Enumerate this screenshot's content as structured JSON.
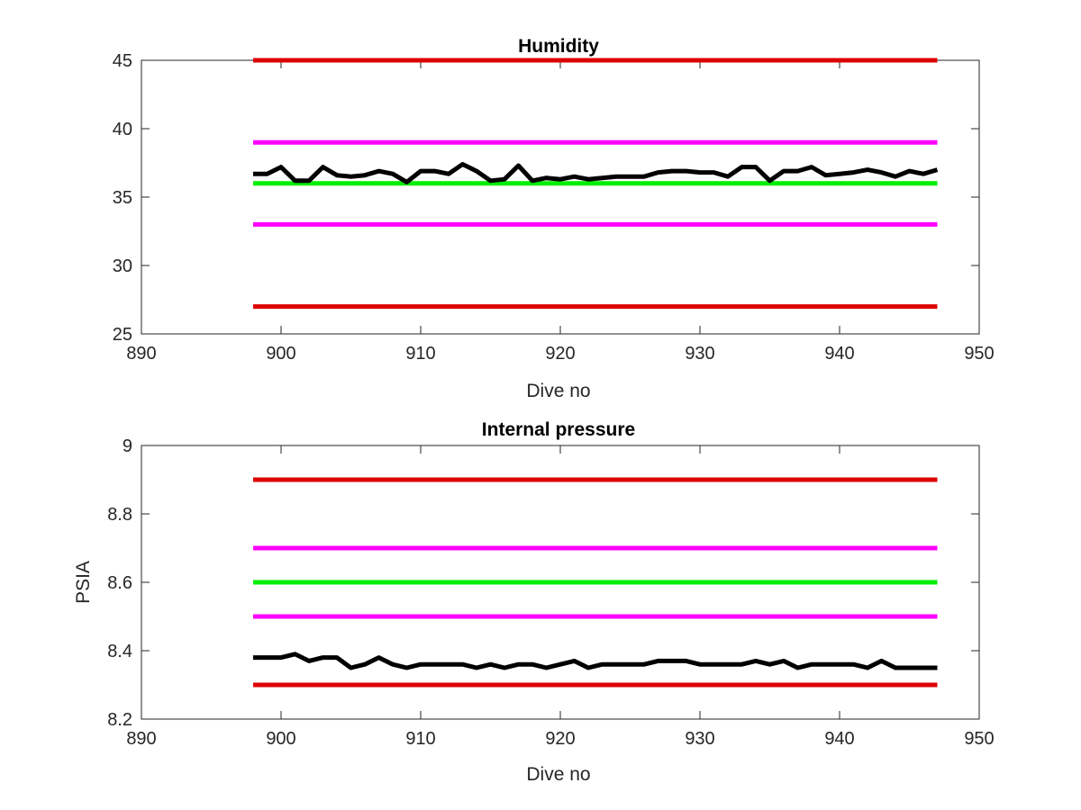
{
  "chart_data": [
    {
      "type": "line",
      "title": "Humidity",
      "xlabel": "Dive no",
      "ylabel": "",
      "xlim": [
        890,
        950
      ],
      "ylim": [
        25,
        45
      ],
      "xticks": [
        "890",
        "900",
        "910",
        "920",
        "930",
        "940",
        "950"
      ],
      "yticks": [
        "25",
        "30",
        "35",
        "40",
        "45"
      ],
      "grid": false,
      "series": [
        {
          "color": "#dd0000",
          "x": [
            898,
            947
          ],
          "y": [
            45,
            45
          ]
        },
        {
          "color": "#ff00ff",
          "x": [
            898,
            947
          ],
          "y": [
            39,
            39
          ]
        },
        {
          "color": "#00ee00",
          "x": [
            898,
            947
          ],
          "y": [
            36,
            36
          ]
        },
        {
          "color": "#ff00ff",
          "x": [
            898,
            947
          ],
          "y": [
            33,
            33
          ]
        },
        {
          "color": "#dd0000",
          "x": [
            898,
            947
          ],
          "y": [
            27,
            27
          ]
        },
        {
          "color": "#000000",
          "x": [
            898,
            899,
            900,
            901,
            902,
            903,
            904,
            905,
            906,
            907,
            908,
            909,
            910,
            911,
            912,
            913,
            914,
            915,
            916,
            917,
            918,
            919,
            920,
            921,
            922,
            923,
            924,
            925,
            926,
            927,
            928,
            929,
            930,
            931,
            932,
            933,
            934,
            935,
            936,
            937,
            938,
            939,
            940,
            941,
            942,
            943,
            944,
            945,
            946,
            947
          ],
          "y": [
            36.7,
            36.7,
            37.2,
            36.2,
            36.2,
            37.2,
            36.6,
            36.5,
            36.6,
            36.9,
            36.7,
            36.1,
            36.9,
            36.9,
            36.7,
            37.4,
            36.9,
            36.2,
            36.3,
            37.3,
            36.2,
            36.4,
            36.3,
            36.5,
            36.3,
            36.4,
            36.5,
            36.5,
            36.5,
            36.8,
            36.9,
            36.9,
            36.8,
            36.8,
            36.5,
            37.2,
            37.2,
            36.2,
            36.9,
            36.9,
            37.2,
            36.6,
            36.7,
            36.8,
            37.0,
            36.8,
            36.5,
            36.9,
            36.7,
            37.0
          ]
        }
      ]
    },
    {
      "type": "line",
      "title": "Internal pressure",
      "xlabel": "Dive no",
      "ylabel": "PSIA",
      "xlim": [
        890,
        950
      ],
      "ylim": [
        8.2,
        9.0
      ],
      "xticks": [
        "890",
        "900",
        "910",
        "920",
        "930",
        "940",
        "950"
      ],
      "yticks": [
        "8.2",
        "8.4",
        "8.6",
        "8.8",
        "9"
      ],
      "grid": false,
      "series": [
        {
          "color": "#dd0000",
          "x": [
            898,
            947
          ],
          "y": [
            8.9,
            8.9
          ]
        },
        {
          "color": "#ff00ff",
          "x": [
            898,
            947
          ],
          "y": [
            8.7,
            8.7
          ]
        },
        {
          "color": "#00ee00",
          "x": [
            898,
            947
          ],
          "y": [
            8.6,
            8.6
          ]
        },
        {
          "color": "#ff00ff",
          "x": [
            898,
            947
          ],
          "y": [
            8.5,
            8.5
          ]
        },
        {
          "color": "#dd0000",
          "x": [
            898,
            947
          ],
          "y": [
            8.3,
            8.3
          ]
        },
        {
          "color": "#000000",
          "x": [
            898,
            899,
            900,
            901,
            902,
            903,
            904,
            905,
            906,
            907,
            908,
            909,
            910,
            911,
            912,
            913,
            914,
            915,
            916,
            917,
            918,
            919,
            920,
            921,
            922,
            923,
            924,
            925,
            926,
            927,
            928,
            929,
            930,
            931,
            932,
            933,
            934,
            935,
            936,
            937,
            938,
            939,
            940,
            941,
            942,
            943,
            944,
            945,
            946,
            947
          ],
          "y": [
            8.38,
            8.38,
            8.38,
            8.39,
            8.37,
            8.38,
            8.38,
            8.35,
            8.36,
            8.38,
            8.36,
            8.35,
            8.36,
            8.36,
            8.36,
            8.36,
            8.35,
            8.36,
            8.35,
            8.36,
            8.36,
            8.35,
            8.36,
            8.37,
            8.35,
            8.36,
            8.36,
            8.36,
            8.36,
            8.37,
            8.37,
            8.37,
            8.36,
            8.36,
            8.36,
            8.36,
            8.37,
            8.36,
            8.37,
            8.35,
            8.36,
            8.36,
            8.36,
            8.36,
            8.35,
            8.37,
            8.35,
            8.35,
            8.35,
            8.35
          ]
        }
      ]
    }
  ]
}
